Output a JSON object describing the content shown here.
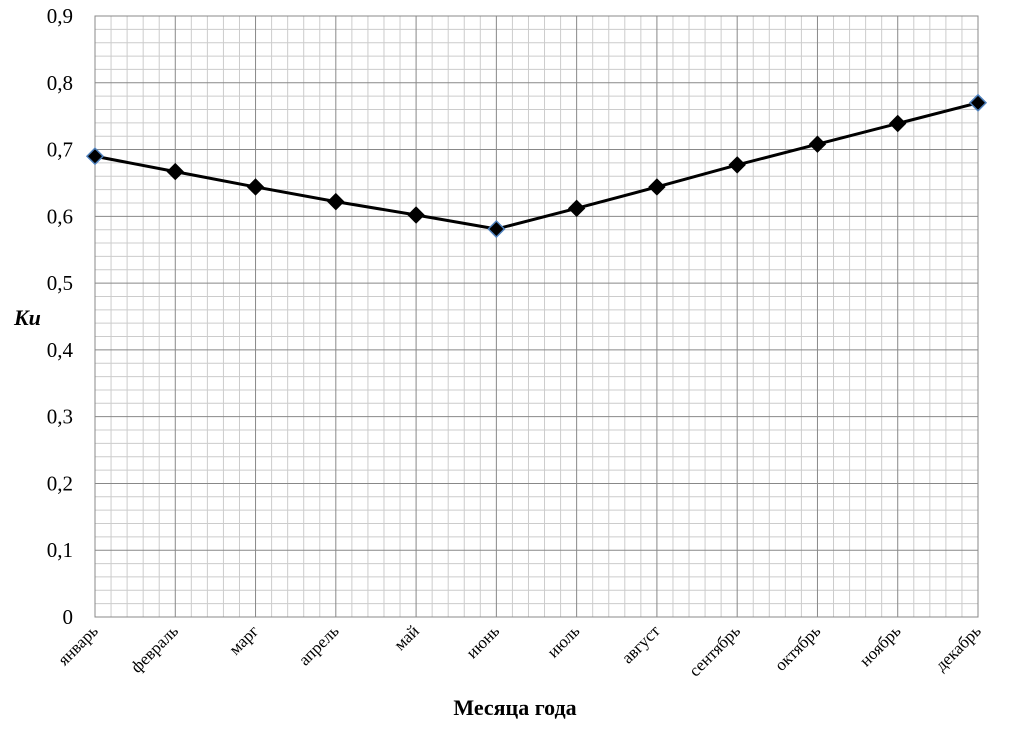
{
  "chart_data": {
    "type": "line",
    "xlabel": "Месяца года",
    "ylabel": "Kи",
    "categories": [
      "январь",
      "февраль",
      "марг",
      "апрель",
      "май",
      "июнь",
      "июль",
      "август",
      "сентябрь",
      "октябрь",
      "ноябрь",
      "декабрь"
    ],
    "series": [
      {
        "values": [
          0.69,
          0.667,
          0.644,
          0.622,
          0.602,
          0.581,
          0.612,
          0.644,
          0.677,
          0.708,
          0.739,
          0.77
        ]
      }
    ],
    "ylim": [
      0,
      0.9
    ],
    "yticks": [
      "0",
      "0,1",
      "0,2",
      "0,3",
      "0,4",
      "0,5",
      "0,6",
      "0,7",
      "0,8",
      "0,9"
    ],
    "grid": true,
    "minor_grid": true,
    "legend": "none",
    "colors": {
      "line": "#000000",
      "marker_fill": "#000000",
      "marker_highlight_stroke": "#4f81bd",
      "major_grid": "#888888",
      "minor_grid": "#cccccc",
      "plot_border": "#888888"
    }
  }
}
